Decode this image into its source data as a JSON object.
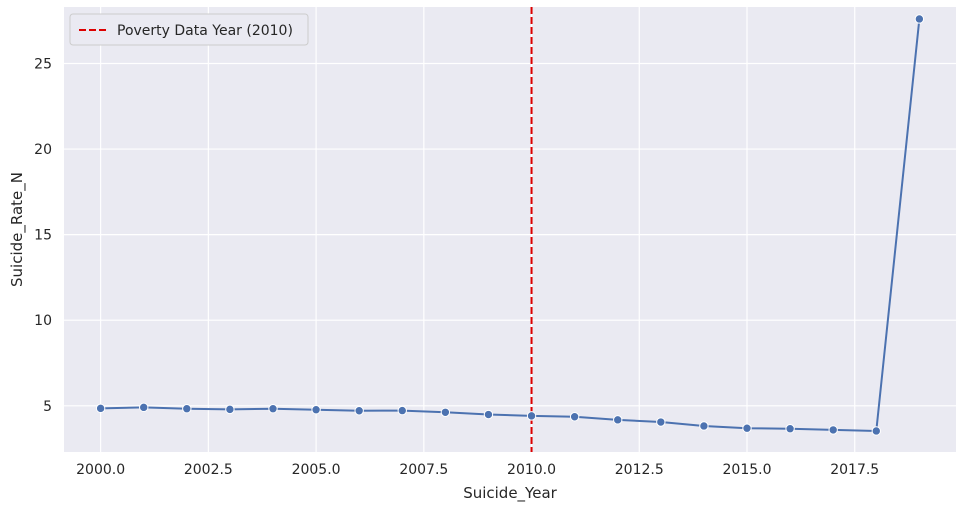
{
  "chart_data": {
    "type": "line",
    "title": "",
    "xlabel": "Suicide_Year",
    "ylabel": "Suicide_Rate_N",
    "xlim": [
      1999.15,
      2019.85
    ],
    "ylim": [
      2.3,
      28.3
    ],
    "xticks": [
      2000.0,
      2002.5,
      2005.0,
      2007.5,
      2010.0,
      2012.5,
      2015.0,
      2017.5
    ],
    "xtick_labels": [
      "2000.0",
      "2002.5",
      "2005.0",
      "2007.5",
      "2010.0",
      "2012.5",
      "2015.0",
      "2017.5"
    ],
    "yticks": [
      5,
      10,
      15,
      20,
      25
    ],
    "ytick_labels": [
      "5",
      "10",
      "15",
      "20",
      "25"
    ],
    "grid": true,
    "legend_position": "top-left",
    "series": [
      {
        "color": "#4c72b0",
        "marker": "circle",
        "x": [
          2000,
          2001,
          2002,
          2003,
          2004,
          2005,
          2006,
          2007,
          2008,
          2009,
          2010,
          2011,
          2012,
          2013,
          2014,
          2015,
          2016,
          2017,
          2018,
          2019
        ],
        "y": [
          4.85,
          4.91,
          4.83,
          4.79,
          4.83,
          4.77,
          4.71,
          4.72,
          4.62,
          4.49,
          4.41,
          4.36,
          4.18,
          4.05,
          3.82,
          3.69,
          3.66,
          3.59,
          3.53,
          27.6
        ]
      }
    ],
    "vline": {
      "x": 2010,
      "label": "Poverty Data Year (2010)",
      "color": "#dd0000",
      "style": "dashed"
    }
  },
  "colors": {
    "plot_background": "#eaeaf2",
    "grid": "#ffffff"
  }
}
